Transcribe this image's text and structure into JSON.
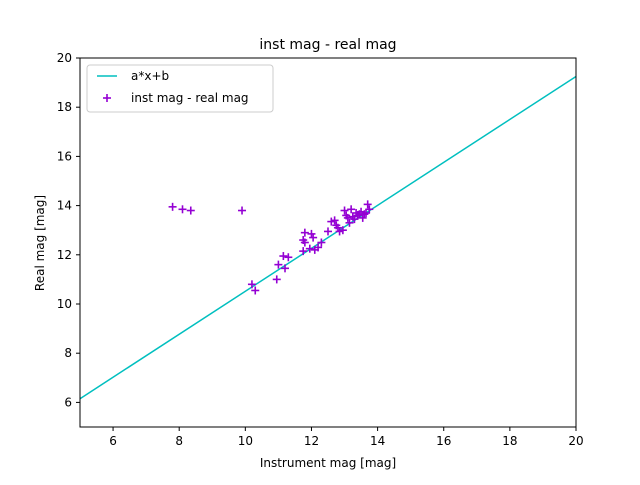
{
  "colors": {
    "fit_line": "#00bfbf",
    "points": "#9400d3",
    "axes": "#000000",
    "legend_border": "#cccccc"
  },
  "chart_data": {
    "type": "scatter",
    "title": "inst mag - real mag",
    "xlabel": "Instrument mag [mag]",
    "ylabel": "Real mag [mag]",
    "xlim": [
      5,
      20
    ],
    "ylim": [
      5,
      20
    ],
    "xticks": [
      6,
      8,
      10,
      12,
      14,
      16,
      18,
      20
    ],
    "yticks": [
      6,
      8,
      10,
      12,
      14,
      16,
      18,
      20
    ],
    "grid": false,
    "legend_position": "top-left",
    "series": [
      {
        "name": "a*x+b",
        "kind": "line",
        "points": [
          [
            5,
            6.15
          ],
          [
            20,
            19.25
          ]
        ]
      },
      {
        "name": "inst mag - real mag",
        "kind": "scatter",
        "marker": "+",
        "points": [
          [
            7.8,
            13.95
          ],
          [
            8.1,
            13.85
          ],
          [
            8.35,
            13.8
          ],
          [
            9.9,
            13.8
          ],
          [
            10.2,
            10.8
          ],
          [
            10.3,
            10.55
          ],
          [
            10.95,
            11.0
          ],
          [
            11.0,
            11.6
          ],
          [
            11.15,
            11.95
          ],
          [
            11.2,
            11.45
          ],
          [
            11.3,
            11.9
          ],
          [
            11.75,
            12.15
          ],
          [
            11.75,
            12.6
          ],
          [
            11.8,
            12.5
          ],
          [
            11.8,
            12.9
          ],
          [
            11.95,
            12.25
          ],
          [
            12.0,
            12.85
          ],
          [
            12.05,
            12.7
          ],
          [
            12.1,
            12.2
          ],
          [
            12.2,
            12.3
          ],
          [
            12.3,
            12.5
          ],
          [
            12.5,
            12.95
          ],
          [
            12.6,
            13.35
          ],
          [
            12.7,
            13.4
          ],
          [
            12.75,
            13.2
          ],
          [
            12.8,
            13.1
          ],
          [
            12.85,
            12.95
          ],
          [
            12.95,
            13.0
          ],
          [
            13.0,
            13.8
          ],
          [
            13.05,
            13.6
          ],
          [
            13.1,
            13.5
          ],
          [
            13.15,
            13.3
          ],
          [
            13.2,
            13.85
          ],
          [
            13.25,
            13.55
          ],
          [
            13.3,
            13.45
          ],
          [
            13.35,
            13.7
          ],
          [
            13.4,
            13.6
          ],
          [
            13.45,
            13.65
          ],
          [
            13.5,
            13.75
          ],
          [
            13.55,
            13.5
          ],
          [
            13.6,
            13.65
          ],
          [
            13.65,
            13.7
          ],
          [
            13.7,
            14.05
          ],
          [
            13.75,
            13.85
          ]
        ]
      }
    ]
  }
}
